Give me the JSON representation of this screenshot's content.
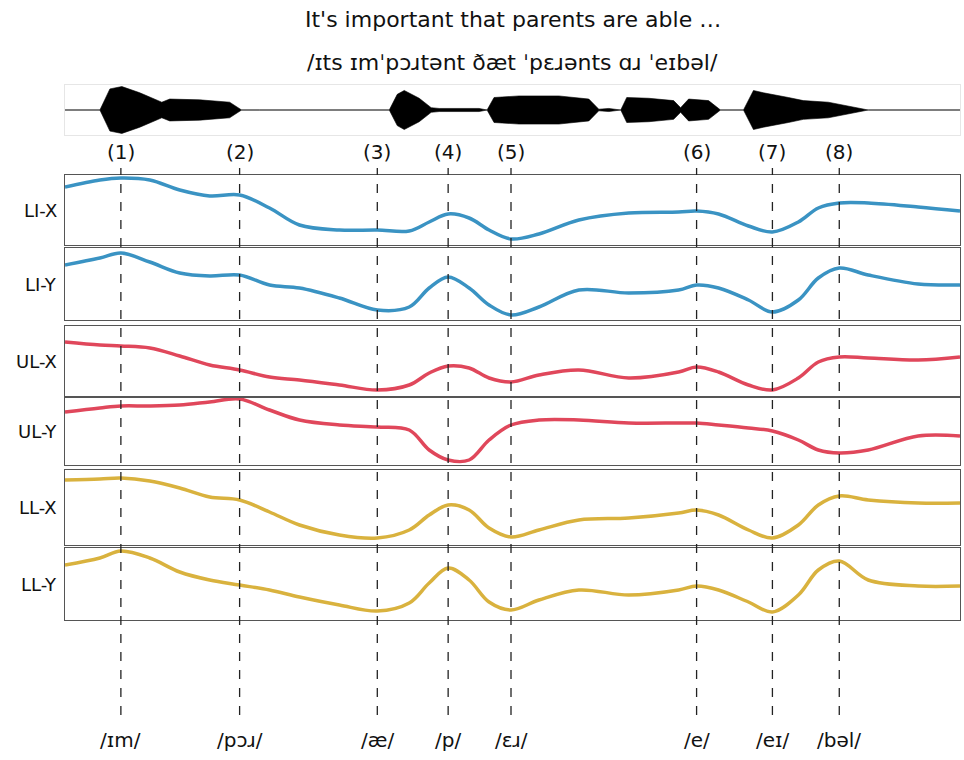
{
  "chart_data": {
    "type": "line",
    "title": "It's important that parents are able …",
    "subtitle": "/ɪts ɪmˈpɔɹtənt ðæt ˈpɛɹənts ɑɹ ˈeɪbəl/",
    "tick_labels": false,
    "grid": false,
    "xlim": [
      65,
      962
    ],
    "x": [
      65,
      100,
      121,
      150,
      180,
      210,
      240,
      270,
      300,
      340,
      378,
      410,
      430,
      449,
      470,
      490,
      512,
      540,
      580,
      630,
      680,
      698,
      720,
      750,
      774,
      800,
      820,
      841,
      870,
      920,
      962
    ],
    "waveform": {
      "color": "#000000",
      "ylim": [
        -32,
        32
      ],
      "x": [
        65,
        100,
        110,
        122,
        140,
        162,
        170,
        200,
        230,
        242,
        260,
        390,
        398,
        405,
        420,
        432,
        440,
        480,
        488,
        495,
        520,
        560,
        590,
        600,
        610,
        622,
        628,
        650,
        675,
        682,
        690,
        710,
        722,
        745,
        755,
        765,
        790,
        805,
        830,
        860,
        870,
        962
      ],
      "amplitude": [
        0,
        0,
        27,
        30,
        22,
        10,
        14,
        13,
        10,
        0,
        0,
        0,
        20,
        25,
        15,
        3,
        2,
        2,
        0,
        16,
        18,
        18,
        14,
        1,
        2,
        0,
        16,
        15,
        12,
        3,
        14,
        12,
        0,
        0,
        25,
        22,
        16,
        12,
        10,
        3,
        0,
        0
      ]
    },
    "series": [
      {
        "name": "LI-X",
        "color": "#3a93c3",
        "ylim": [
          0,
          70
        ],
        "values": [
          58,
          65,
          67,
          65,
          55,
          49,
          50,
          37,
          20,
          15,
          15,
          14,
          23,
          31,
          27,
          15,
          6,
          11,
          25,
          32,
          33,
          34,
          31,
          19,
          13,
          23,
          37,
          42,
          42,
          38,
          34
        ]
      },
      {
        "name": "LI-Y",
        "color": "#3a93c3",
        "ylim": [
          0,
          72
        ],
        "values": [
          55,
          62,
          67,
          58,
          47,
          44,
          45,
          35,
          32,
          22,
          10,
          13,
          32,
          43,
          32,
          15,
          5,
          13,
          30,
          27,
          30,
          35,
          32,
          20,
          8,
          20,
          42,
          52,
          45,
          36,
          35
        ]
      },
      {
        "name": "UL-X",
        "color": "#e0475b",
        "ylim": [
          0,
          70
        ],
        "values": [
          54,
          51,
          50,
          48,
          40,
          31,
          26,
          19,
          16,
          11,
          6,
          11,
          23,
          30,
          28,
          18,
          14,
          21,
          26,
          18,
          24,
          29,
          24,
          11,
          6,
          18,
          34,
          39,
          38,
          36,
          39
        ]
      },
      {
        "name": "UL-Y",
        "color": "#e0475b",
        "ylim": [
          0,
          67
        ],
        "values": [
          53,
          57,
          59,
          59,
          60,
          63,
          66,
          55,
          45,
          40,
          38,
          35,
          15,
          5,
          5,
          25,
          40,
          45,
          45,
          42,
          42,
          42,
          40,
          37,
          34,
          25,
          15,
          12,
          15,
          29,
          29
        ]
      },
      {
        "name": "LL-X",
        "color": "#d9b23e",
        "ylim": [
          0,
          75
        ],
        "values": [
          65,
          66,
          67,
          64,
          57,
          48,
          45,
          33,
          20,
          10,
          7,
          15,
          30,
          40,
          35,
          17,
          8,
          15,
          25,
          27,
          32,
          35,
          30,
          15,
          7,
          20,
          40,
          49,
          45,
          42,
          42
        ]
      },
      {
        "name": "LL-Y",
        "color": "#d9b23e",
        "ylim": [
          0,
          72
        ],
        "values": [
          55,
          62,
          69,
          62,
          48,
          40,
          35,
          30,
          23,
          15,
          9,
          17,
          37,
          52,
          40,
          18,
          10,
          20,
          30,
          25,
          30,
          34,
          30,
          18,
          8,
          25,
          50,
          59,
          40,
          34,
          34
        ]
      }
    ],
    "markers": [
      {
        "label": "(1)",
        "x": 121,
        "phoneme": "/ɪm/"
      },
      {
        "label": "(2)",
        "x": 240,
        "phoneme": "/pɔɹ/"
      },
      {
        "label": "(3)",
        "x": 378,
        "phoneme": "/æ/"
      },
      {
        "label": "(4)",
        "x": 449,
        "phoneme": "/p/"
      },
      {
        "label": "(5)",
        "x": 512,
        "phoneme": "/ɛɹ/"
      },
      {
        "label": "(6)",
        "x": 698,
        "phoneme": "/e/"
      },
      {
        "label": "(7)",
        "x": 774,
        "phoneme": "/eɪ/"
      },
      {
        "label": "(8)",
        "x": 841,
        "phoneme": "/bəl/"
      }
    ]
  }
}
